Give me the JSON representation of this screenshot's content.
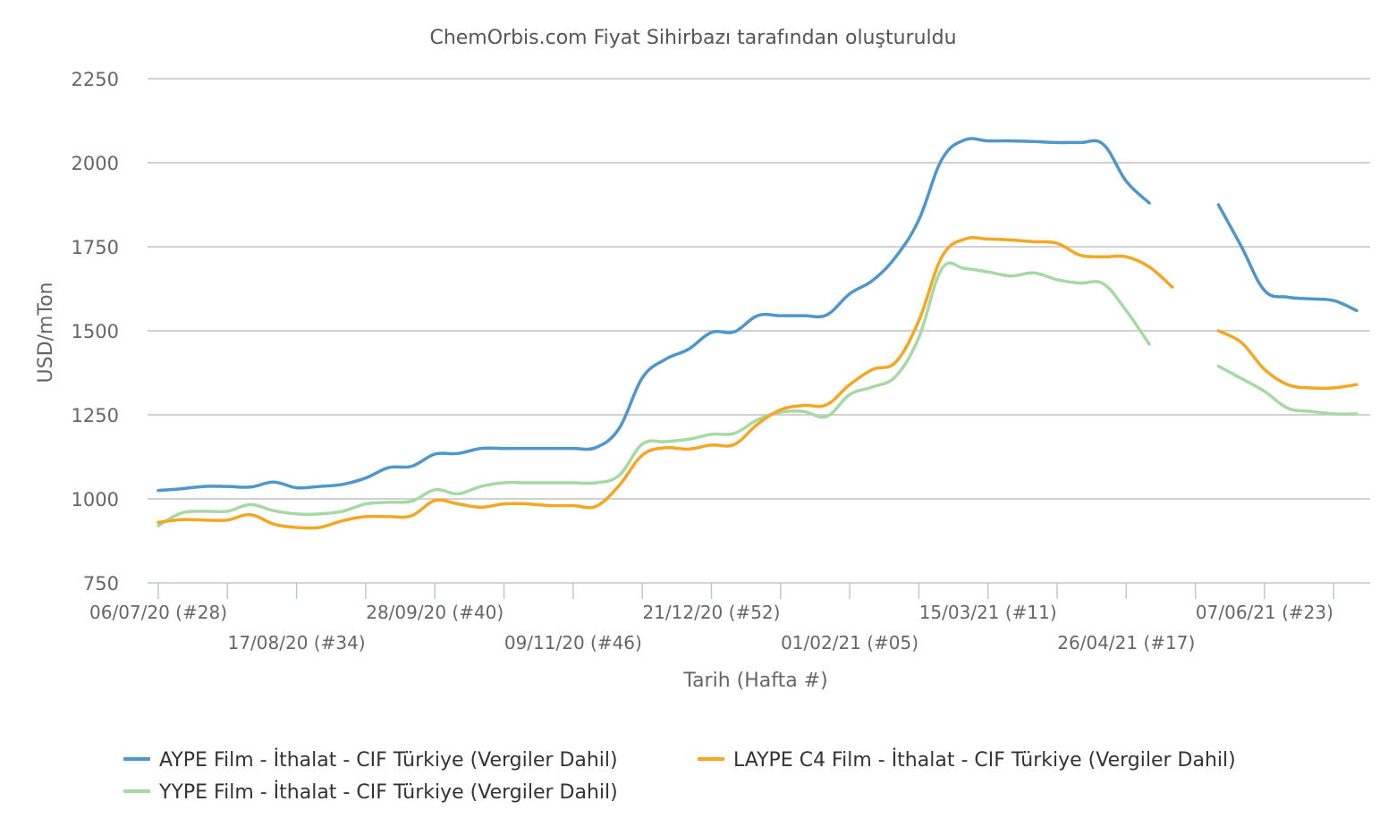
{
  "chart_data": {
    "type": "line",
    "title": "ChemOrbis.com Fiyat Sihirbazı tarafından oluşturuldu",
    "xlabel": "Tarih (Hafta #)",
    "ylabel": "USD/mTon",
    "ylim": [
      750,
      2250
    ],
    "yticks": [
      750,
      1000,
      1250,
      1500,
      1750,
      2000,
      2250
    ],
    "grid": true,
    "legend_position": "bottom",
    "week_count": 52,
    "x_labels": [
      {
        "index": 0,
        "text": "06/07/20 (#28)",
        "row": 1
      },
      {
        "index": 6,
        "text": "17/08/20 (#34)",
        "row": 2
      },
      {
        "index": 12,
        "text": "28/09/20 (#40)",
        "row": 1
      },
      {
        "index": 18,
        "text": "09/11/20 (#46)",
        "row": 2
      },
      {
        "index": 24,
        "text": "21/12/20 (#52)",
        "row": 1
      },
      {
        "index": 30,
        "text": "01/02/21 (#05)",
        "row": 2
      },
      {
        "index": 36,
        "text": "15/03/21 (#11)",
        "row": 1
      },
      {
        "index": 42,
        "text": "26/04/21 (#17)",
        "row": 2
      },
      {
        "index": 48,
        "text": "07/06/21 (#23)",
        "row": 1
      }
    ],
    "series": [
      {
        "name": "AYPE Film - İthalat - CIF Türkiye (Vergiler Dahil)",
        "color": "#4e96cb",
        "values": [
          1025,
          1030,
          1037,
          1037,
          1035,
          1050,
          1033,
          1037,
          1043,
          1062,
          1093,
          1097,
          1133,
          1135,
          1150,
          1150,
          1150,
          1150,
          1150,
          1153,
          1210,
          1360,
          1415,
          1445,
          1495,
          1497,
          1545,
          1545,
          1545,
          1547,
          1610,
          1650,
          1720,
          1830,
          2010,
          2068,
          2065,
          2065,
          2063,
          2060,
          2060,
          2055,
          1945,
          1880,
          null,
          null,
          1875,
          1750,
          1620,
          1600,
          1595,
          1590,
          1560
        ]
      },
      {
        "name": "LAYPE C4 Film - İthalat - CIF Türkiye (Vergiler Dahil)",
        "color": "#f5a623",
        "values": [
          930,
          938,
          937,
          937,
          953,
          925,
          915,
          915,
          935,
          947,
          947,
          950,
          995,
          985,
          975,
          985,
          985,
          980,
          980,
          978,
          1040,
          1130,
          1152,
          1148,
          1160,
          1162,
          1222,
          1265,
          1278,
          1280,
          1340,
          1385,
          1407,
          1530,
          1720,
          1773,
          1773,
          1770,
          1765,
          1760,
          1725,
          1720,
          1720,
          1690,
          1630,
          null,
          1500,
          1465,
          1385,
          1340,
          1330,
          1330,
          1340
        ]
      },
      {
        "name": "YYPE Film - İthalat - CIF Türkiye (Vergiler Dahil)",
        "color": "#a6d9a3",
        "values": [
          920,
          958,
          963,
          963,
          983,
          965,
          955,
          955,
          963,
          985,
          990,
          993,
          1027,
          1015,
          1037,
          1048,
          1048,
          1048,
          1048,
          1048,
          1070,
          1163,
          1170,
          1177,
          1192,
          1195,
          1235,
          1258,
          1260,
          1245,
          1310,
          1333,
          1365,
          1480,
          1685,
          1685,
          1675,
          1663,
          1672,
          1652,
          1642,
          1640,
          1560,
          1460,
          null,
          null,
          1395,
          1358,
          1320,
          1270,
          1260,
          1253,
          1253
        ]
      }
    ]
  }
}
